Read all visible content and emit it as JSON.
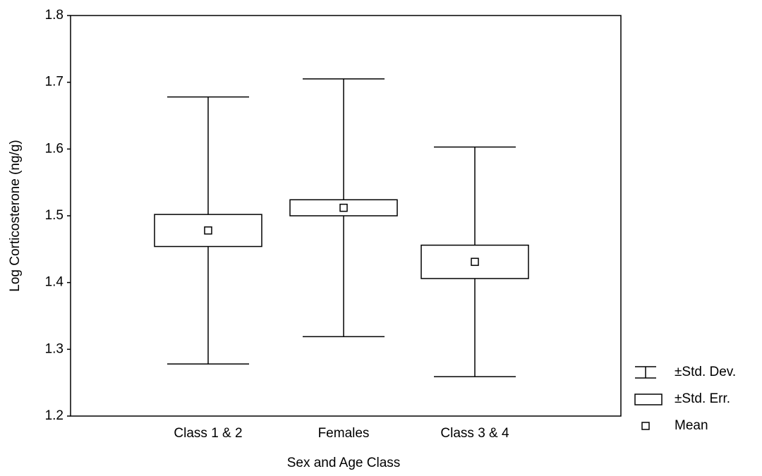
{
  "chart_data": {
    "type": "box",
    "xlabel": "Sex and Age Class",
    "ylabel": "Log Corticosterone (ng/g)",
    "categories": [
      "Class 1 & 2",
      "Females",
      "Class 3 & 4"
    ],
    "mean": [
      1.478,
      1.512,
      1.431
    ],
    "se": [
      0.024,
      0.012,
      0.025
    ],
    "sd": [
      0.2,
      0.193,
      0.172
    ],
    "legend": [
      "±Std. Dev.",
      "±Std. Err.",
      "Mean"
    ],
    "ylim": [
      1.2,
      1.8
    ],
    "yticks": [
      1.2,
      1.3,
      1.4,
      1.5,
      1.6,
      1.7,
      1.8
    ],
    "grid": false
  }
}
